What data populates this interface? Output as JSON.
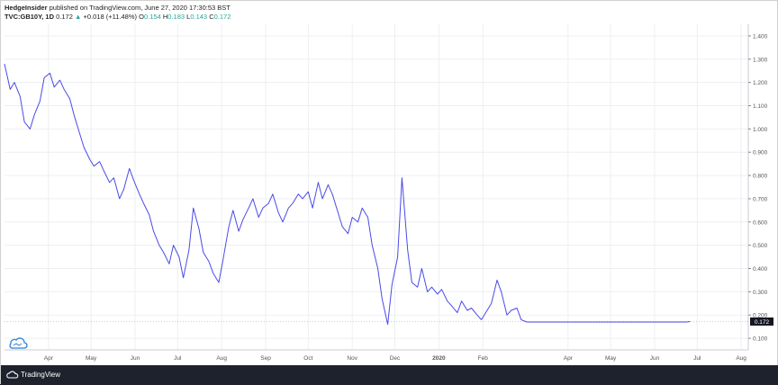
{
  "header": {
    "author": "HedgeInsider",
    "published": "published on TradingView.com, June 27, 2020 17:30:53 BST",
    "symbol": "TVC:GB10Y, 1D",
    "last": "0.172",
    "change_arrow": "▲",
    "change": "+0.018 (+11.48%)",
    "o_label": "O",
    "o_value": "0.154",
    "h_label": "H",
    "h_value": "0.183",
    "l_label": "L",
    "l_value": "0.143",
    "c_label": "C",
    "c_value": "0.172"
  },
  "footer": {
    "brand": "TradingView",
    "logo_icon": "tradingview-cloud-icon"
  },
  "colors": {
    "line": "#4a4ae8",
    "badge_bg": "#131722",
    "grid": "#eceff2",
    "cloud": "#2f7fd1"
  },
  "chart_data": {
    "type": "line",
    "title": "",
    "xlabel": "",
    "ylabel": "",
    "ylim": [
      0.05,
      1.45
    ],
    "grid": true,
    "last_value_label": "0.172",
    "y_ticks": [
      "0.100",
      "0.200",
      "0.300",
      "0.400",
      "0.500",
      "0.600",
      "0.700",
      "0.800",
      "0.900",
      "1.000",
      "1.100",
      "1.200",
      "1.300",
      "1.400"
    ],
    "x_ticks": [
      {
        "label": "Apr",
        "x": "2019-04-01"
      },
      {
        "label": "May",
        "x": "2019-05-01"
      },
      {
        "label": "Jun",
        "x": "2019-06-01"
      },
      {
        "label": "Jul",
        "x": "2019-07-01"
      },
      {
        "label": "Aug",
        "x": "2019-08-01"
      },
      {
        "label": "Sep",
        "x": "2019-09-01"
      },
      {
        "label": "Oct",
        "x": "2019-10-01"
      },
      {
        "label": "Nov",
        "x": "2019-11-01"
      },
      {
        "label": "Dec",
        "x": "2019-12-01"
      },
      {
        "label": "2020",
        "x": "2020-01-01"
      },
      {
        "label": "Feb",
        "x": "2020-02-01"
      },
      {
        "label": "Apr",
        "x": "2020-04-01"
      },
      {
        "label": "May",
        "x": "2020-05-01"
      },
      {
        "label": "Jun",
        "x": "2020-06-01"
      },
      {
        "label": "Jul",
        "x": "2020-07-01"
      },
      {
        "label": "Aug",
        "x": "2020-08-01"
      }
    ],
    "xlim": [
      "2019-03-01",
      "2020-08-06"
    ],
    "series": [
      {
        "x": [
          "2019-03-01",
          "2019-03-05",
          "2019-03-08",
          "2019-03-12",
          "2019-03-15",
          "2019-03-19",
          "2019-03-22",
          "2019-03-26",
          "2019-03-29",
          "2019-04-02",
          "2019-04-05",
          "2019-04-09",
          "2019-04-12",
          "2019-04-16",
          "2019-04-19",
          "2019-04-23",
          "2019-04-26",
          "2019-04-30",
          "2019-05-03",
          "2019-05-07",
          "2019-05-10",
          "2019-05-14",
          "2019-05-17",
          "2019-05-21",
          "2019-05-24",
          "2019-05-28",
          "2019-05-31",
          "2019-06-04",
          "2019-06-07",
          "2019-06-11",
          "2019-06-14",
          "2019-06-18",
          "2019-06-21",
          "2019-06-25",
          "2019-06-28",
          "2019-07-02",
          "2019-07-05",
          "2019-07-09",
          "2019-07-12",
          "2019-07-16",
          "2019-07-19",
          "2019-07-23",
          "2019-07-26",
          "2019-07-30",
          "2019-08-02",
          "2019-08-06",
          "2019-08-09",
          "2019-08-13",
          "2019-08-16",
          "2019-08-20",
          "2019-08-23",
          "2019-08-27",
          "2019-08-30",
          "2019-09-03",
          "2019-09-06",
          "2019-09-10",
          "2019-09-13",
          "2019-09-17",
          "2019-09-20",
          "2019-09-24",
          "2019-09-27",
          "2019-10-01",
          "2019-10-04",
          "2019-10-08",
          "2019-10-11",
          "2019-10-15",
          "2019-10-18",
          "2019-10-22",
          "2019-10-25",
          "2019-10-29",
          "2019-11-01",
          "2019-11-05",
          "2019-11-08",
          "2019-11-12",
          "2019-11-15",
          "2019-11-19",
          "2019-11-22",
          "2019-11-26",
          "2019-11-29",
          "2019-12-03",
          "2019-12-06",
          "2019-12-10",
          "2019-12-13",
          "2019-12-17",
          "2019-12-20",
          "2019-12-24",
          "2019-12-27",
          "2019-12-31",
          "2020-01-03",
          "2020-01-07",
          "2020-01-10",
          "2020-01-14",
          "2020-01-17",
          "2020-01-21",
          "2020-01-24",
          "2020-01-28",
          "2020-01-31",
          "2020-02-04",
          "2020-02-07",
          "2020-02-11",
          "2020-02-14",
          "2020-02-18",
          "2020-02-21",
          "2020-02-25",
          "2020-02-28",
          "2020-03-03",
          "2020-03-06",
          "2020-03-09",
          "2020-03-12",
          "2020-03-16",
          "2020-03-18",
          "2020-03-20",
          "2020-03-24",
          "2020-03-27",
          "2020-03-31",
          "2020-04-03",
          "2020-04-07",
          "2020-04-10",
          "2020-04-14",
          "2020-04-17",
          "2020-04-21",
          "2020-04-24",
          "2020-04-28",
          "2020-05-01",
          "2020-05-05",
          "2020-05-08",
          "2020-05-12",
          "2020-05-15",
          "2020-05-19",
          "2020-05-22",
          "2020-05-26",
          "2020-05-29",
          "2020-06-02",
          "2020-06-05",
          "2020-06-09",
          "2020-06-12",
          "2020-06-16",
          "2020-06-19",
          "2020-06-23",
          "2020-06-26"
        ],
        "values": [
          1.28,
          1.17,
          1.2,
          1.14,
          1.03,
          1.0,
          1.06,
          1.12,
          1.22,
          1.24,
          1.18,
          1.21,
          1.17,
          1.13,
          1.06,
          0.98,
          0.92,
          0.87,
          0.84,
          0.86,
          0.82,
          0.77,
          0.79,
          0.7,
          0.74,
          0.83,
          0.78,
          0.72,
          0.68,
          0.63,
          0.56,
          0.5,
          0.47,
          0.42,
          0.5,
          0.45,
          0.36,
          0.48,
          0.66,
          0.57,
          0.47,
          0.43,
          0.38,
          0.34,
          0.44,
          0.58,
          0.65,
          0.56,
          0.61,
          0.66,
          0.7,
          0.62,
          0.66,
          0.68,
          0.72,
          0.64,
          0.6,
          0.66,
          0.68,
          0.72,
          0.7,
          0.73,
          0.66,
          0.77,
          0.7,
          0.76,
          0.72,
          0.64,
          0.58,
          0.55,
          0.62,
          0.6,
          0.66,
          0.62,
          0.5,
          0.4,
          0.27,
          0.16,
          0.33,
          0.45,
          0.79,
          0.48,
          0.34,
          0.32,
          0.4,
          0.3,
          0.32,
          0.29,
          0.31,
          0.26,
          0.24,
          0.21,
          0.26,
          0.22,
          0.23,
          0.2,
          0.18,
          0.22,
          0.25,
          0.35,
          0.3,
          0.2,
          0.22,
          0.23,
          0.18,
          0.17,
          0.17,
          0.17,
          0.17,
          0.17,
          0.17,
          0.17,
          0.17,
          0.17,
          0.17,
          0.17,
          0.17,
          0.17,
          0.17,
          0.17,
          0.17,
          0.17,
          0.17,
          0.17,
          0.17,
          0.17,
          0.17,
          0.17,
          0.17,
          0.17,
          0.17,
          0.17,
          0.17,
          0.17,
          0.17,
          0.17,
          0.17,
          0.17,
          0.17,
          0.172
        ]
      }
    ]
  }
}
